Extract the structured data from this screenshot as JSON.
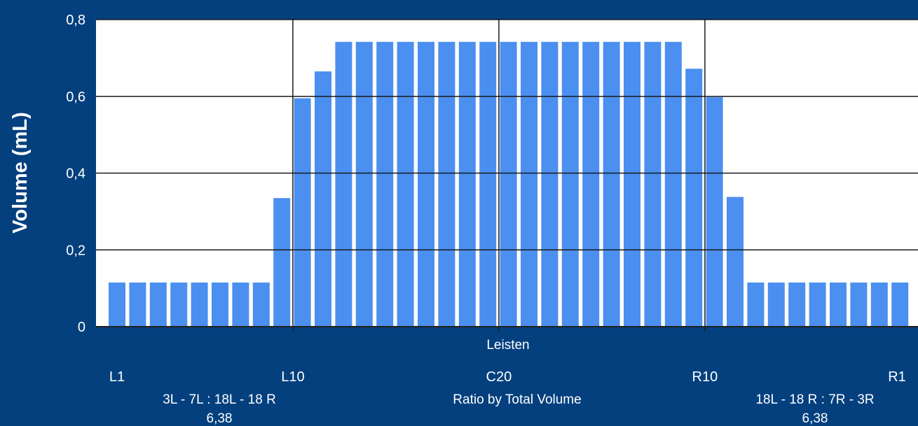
{
  "chart_data": {
    "type": "bar",
    "ylabel": "Volume (mL)",
    "xlabel": "Leisten",
    "ylim": [
      0,
      0.8
    ],
    "y_ticks": [
      "0",
      "0,2",
      "0,4",
      "0,6",
      "0,8"
    ],
    "grid": true,
    "values": [
      0.115,
      0.115,
      0.115,
      0.115,
      0.115,
      0.115,
      0.115,
      0.115,
      0.335,
      0.595,
      0.665,
      0.742,
      0.742,
      0.742,
      0.742,
      0.742,
      0.742,
      0.742,
      0.742,
      0.742,
      0.742,
      0.742,
      0.742,
      0.742,
      0.742,
      0.742,
      0.742,
      0.742,
      0.672,
      0.598,
      0.338,
      0.115,
      0.115,
      0.115,
      0.115,
      0.115,
      0.115,
      0.115,
      0.115
    ],
    "x_labels": [
      {
        "text": "L1",
        "bar": 0
      },
      {
        "text": "L10",
        "bar": 9
      },
      {
        "text": "C20",
        "bar": 19
      },
      {
        "text": "R10",
        "bar": 29
      },
      {
        "text": "R1",
        "bar": 38
      }
    ],
    "ratios": {
      "left": {
        "label": "3L - 7L : 18L - 18 R",
        "value": "6,38"
      },
      "center": {
        "label": "Ratio by Total Volume"
      },
      "right": {
        "label": "18L - 18 R : 7R - 3R",
        "value": "6,38"
      }
    }
  },
  "colors": {
    "background": "#04407e",
    "plot": "#ffffff",
    "bar": "#4b8ff0",
    "grid": "#1a1a1a",
    "text": "#ffffff"
  }
}
